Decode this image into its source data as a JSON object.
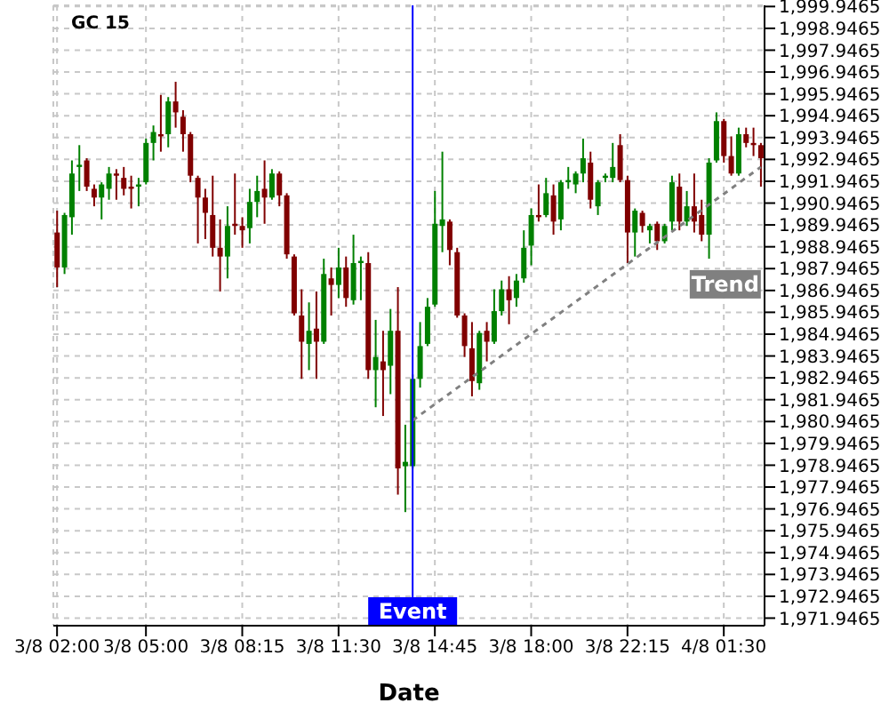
{
  "chart_data": {
    "type": "candlestick",
    "title": "GC 15",
    "xlabel": "Date",
    "categories": [
      "3/8 02:00",
      null,
      null,
      null,
      null,
      null,
      null,
      null,
      null,
      null,
      null,
      null,
      "3/8 05:00",
      null,
      null,
      null,
      null,
      null,
      null,
      null,
      null,
      null,
      null,
      null,
      null,
      "3/8 08:15",
      null,
      null,
      null,
      null,
      null,
      null,
      null,
      null,
      null,
      null,
      null,
      null,
      "3/8 11:30",
      null,
      null,
      null,
      null,
      null,
      null,
      null,
      null,
      null,
      null,
      null,
      null,
      "3/8 14:45",
      null,
      null,
      null,
      null,
      null,
      null,
      null,
      null,
      null,
      null,
      null,
      null,
      "3/8 18:00",
      null,
      null,
      null,
      null,
      null,
      null,
      null,
      null,
      null,
      null,
      null,
      null,
      "3/8 22:15",
      null,
      null,
      null,
      null,
      null,
      null,
      null,
      null,
      null,
      null,
      null,
      null,
      "4/8 01:30",
      null,
      null,
      null,
      null,
      null
    ],
    "ohlc": [
      [
        1989.6,
        1990.6,
        1987.1,
        1988.0
      ],
      [
        1988.0,
        1990.5,
        1987.7,
        1990.4
      ],
      [
        1990.3,
        1992.9,
        1989.5,
        1992.3
      ],
      [
        1992.6,
        1993.6,
        1991.5,
        1992.7
      ],
      [
        1992.9,
        1993.0,
        1991.5,
        1991.7
      ],
      [
        1991.6,
        1991.8,
        1990.8,
        1991.2
      ],
      [
        1991.2,
        1991.9,
        1990.2,
        1991.8
      ],
      [
        1991.6,
        1992.6,
        1991.1,
        1992.3
      ],
      [
        1992.3,
        1992.5,
        1991.1,
        1992.2
      ],
      [
        1992.1,
        1992.6,
        1991.3,
        1991.6
      ],
      [
        1991.7,
        1992.2,
        1990.7,
        1991.6
      ],
      [
        1991.7,
        1992.1,
        1990.8,
        1991.8
      ],
      [
        1991.9,
        1993.9,
        1991.8,
        1993.7
      ],
      [
        1993.7,
        1994.5,
        1992.9,
        1994.2
      ],
      [
        1994.1,
        1995.9,
        1993.3,
        1994.0
      ],
      [
        1994.1,
        1995.8,
        1993.5,
        1995.6
      ],
      [
        1995.6,
        1996.5,
        1994.4,
        1995.1
      ],
      [
        1994.9,
        1995.2,
        1993.3,
        1994.1
      ],
      [
        1994.1,
        1994.2,
        1991.9,
        1992.2
      ],
      [
        1992.1,
        1992.2,
        1989.1,
        1991.2
      ],
      [
        1991.2,
        1991.6,
        1989.3,
        1990.5
      ],
      [
        1990.4,
        1992.2,
        1988.5,
        1988.9
      ],
      [
        1988.9,
        1990.2,
        1986.9,
        1988.5
      ],
      [
        1988.5,
        1990.8,
        1987.5,
        1989.9
      ],
      [
        1990.0,
        1992.3,
        1989.5,
        1989.9
      ],
      [
        1989.9,
        1990.3,
        1988.9,
        1989.7
      ],
      [
        1989.8,
        1991.6,
        1989.1,
        1991.0
      ],
      [
        1991.0,
        1992.2,
        1990.3,
        1991.5
      ],
      [
        1991.6,
        1992.9,
        1990.0,
        1991.2
      ],
      [
        1991.2,
        1992.5,
        1991.1,
        1992.3
      ],
      [
        1992.3,
        1992.4,
        1990.8,
        1991.3
      ],
      [
        1991.3,
        1991.4,
        1988.4,
        1988.6
      ],
      [
        1988.5,
        1988.6,
        1985.8,
        1985.9
      ],
      [
        1985.8,
        1987.0,
        1982.9,
        1984.6
      ],
      [
        1984.5,
        1986.4,
        1983.3,
        1985.1
      ],
      [
        1985.2,
        1986.9,
        1982.9,
        1984.6
      ],
      [
        1984.6,
        1988.4,
        1984.5,
        1987.7
      ],
      [
        1987.5,
        1988.0,
        1985.8,
        1987.2
      ],
      [
        1987.2,
        1988.9,
        1986.6,
        1988.0
      ],
      [
        1988.0,
        1988.5,
        1986.2,
        1986.6
      ],
      [
        1986.5,
        1989.5,
        1986.3,
        1988.2
      ],
      [
        1988.2,
        1988.5,
        1986.5,
        1988.3
      ],
      [
        1988.2,
        1988.7,
        1982.9,
        1983.3
      ],
      [
        1983.3,
        1985.6,
        1981.6,
        1983.9
      ],
      [
        1983.7,
        1985.1,
        1981.2,
        1983.3
      ],
      [
        1983.5,
        1986.1,
        1982.2,
        1985.1
      ],
      [
        1985.1,
        1987.1,
        1977.6,
        1978.8
      ],
      [
        1978.9,
        1980.8,
        1976.8,
        1979.1
      ],
      [
        1978.9,
        1983.1,
        1978.8,
        1982.9
      ],
      [
        1982.9,
        1985.5,
        1982.5,
        1984.4
      ],
      [
        1984.5,
        1986.6,
        1984.4,
        1986.2
      ],
      [
        1986.3,
        1991.5,
        1986.2,
        1990.0
      ],
      [
        1989.9,
        1993.3,
        1988.7,
        1990.2
      ],
      [
        1990.1,
        1990.2,
        1988.1,
        1988.8
      ],
      [
        1988.7,
        1988.9,
        1985.7,
        1985.8
      ],
      [
        1985.8,
        1985.9,
        1983.9,
        1984.4
      ],
      [
        1984.3,
        1985.5,
        1982.1,
        1982.8
      ],
      [
        1982.7,
        1985.1,
        1982.4,
        1985.0
      ],
      [
        1985.1,
        1985.5,
        1983.7,
        1984.6
      ],
      [
        1984.6,
        1987.0,
        1984.5,
        1986.0
      ],
      [
        1986.0,
        1987.4,
        1985.8,
        1987.0
      ],
      [
        1987.0,
        1987.6,
        1985.4,
        1986.5
      ],
      [
        1986.6,
        1987.7,
        1986.2,
        1987.4
      ],
      [
        1987.5,
        1989.7,
        1987.3,
        1988.9
      ],
      [
        1989.0,
        1990.7,
        1988.1,
        1990.4
      ],
      [
        1990.4,
        1991.8,
        1990.1,
        1990.3
      ],
      [
        1990.4,
        1992.1,
        1990.3,
        1991.4
      ],
      [
        1991.3,
        1991.8,
        1989.5,
        1990.1
      ],
      [
        1990.2,
        1992.0,
        1989.7,
        1991.9
      ],
      [
        1991.9,
        1992.6,
        1991.6,
        1992.0
      ],
      [
        1991.8,
        1992.4,
        1991.4,
        1992.3
      ],
      [
        1992.3,
        1993.9,
        1991.9,
        1993.0
      ],
      [
        1992.8,
        1993.3,
        1990.7,
        1991.1
      ],
      [
        1990.8,
        1992.0,
        1990.4,
        1991.9
      ],
      [
        1992.1,
        1992.3,
        1991.9,
        1992.2
      ],
      [
        1992.1,
        1993.7,
        1991.9,
        1992.6
      ],
      [
        1993.6,
        1994.1,
        1991.9,
        1992.0
      ],
      [
        1992.0,
        1992.2,
        1988.2,
        1989.6
      ],
      [
        1989.6,
        1990.7,
        1988.5,
        1990.6
      ],
      [
        1990.5,
        1990.6,
        1989.6,
        1989.9
      ],
      [
        1989.7,
        1990.0,
        1989.1,
        1989.9
      ],
      [
        1990.0,
        1990.1,
        1988.8,
        1989.2
      ],
      [
        1989.2,
        1990.0,
        1989.1,
        1989.9
      ],
      [
        1990.1,
        1992.2,
        1989.7,
        1991.9
      ],
      [
        1991.7,
        1992.3,
        1989.7,
        1990.1
      ],
      [
        1990.1,
        1991.5,
        1989.9,
        1990.8
      ],
      [
        1990.8,
        1992.3,
        1989.6,
        1990.1
      ],
      [
        1990.4,
        1991.1,
        1989.2,
        1989.5
      ],
      [
        1989.5,
        1993.0,
        1988.4,
        1992.8
      ],
      [
        1992.9,
        1995.1,
        1992.8,
        1994.7
      ],
      [
        1994.7,
        1994.8,
        1992.8,
        1993.1
      ],
      [
        1993.1,
        1994.0,
        1992.2,
        1992.3
      ],
      [
        1992.3,
        1994.4,
        1992.2,
        1994.1
      ],
      [
        1994.1,
        1994.4,
        1993.5,
        1993.7
      ],
      [
        1993.7,
        1994.4,
        1993.1,
        1993.6
      ],
      [
        1993.6,
        1993.7,
        1991.7,
        1993.0
      ]
    ],
    "colors": [
      "#800000",
      "#008000",
      "#008000",
      "#008000",
      "#800000",
      "#800000",
      "#008000",
      "#008000",
      "#800000",
      "#800000",
      "#800000",
      "#008000",
      "#008000",
      "#008000",
      "#800000",
      "#008000",
      "#800000",
      "#800000",
      "#800000",
      "#800000",
      "#800000",
      "#800000",
      "#800000",
      "#008000",
      "#800000",
      "#800000",
      "#008000",
      "#008000",
      "#800000",
      "#008000",
      "#800000",
      "#800000",
      "#800000",
      "#800000",
      "#008000",
      "#800000",
      "#008000",
      "#800000",
      "#008000",
      "#800000",
      "#008000",
      "#008000",
      "#800000",
      "#008000",
      "#800000",
      "#008000",
      "#800000",
      "#008000",
      "#008000",
      "#008000",
      "#008000",
      "#008000",
      "#008000",
      "#800000",
      "#800000",
      "#800000",
      "#800000",
      "#008000",
      "#800000",
      "#008000",
      "#008000",
      "#800000",
      "#008000",
      "#008000",
      "#008000",
      "#800000",
      "#008000",
      "#800000",
      "#008000",
      "#008000",
      "#008000",
      "#008000",
      "#800000",
      "#008000",
      "#008000",
      "#008000",
      "#800000",
      "#800000",
      "#008000",
      "#800000",
      "#008000",
      "#800000",
      "#008000",
      "#008000",
      "#800000",
      "#008000",
      "#800000",
      "#800000",
      "#008000",
      "#008000",
      "#800000",
      "#800000",
      "#008000",
      "#800000",
      "#800000",
      "#800000"
    ],
    "series": [
      {
        "type": "line",
        "name": "Trend",
        "color": "#808080",
        "line_style": "dotted",
        "values": [
          null,
          null,
          null,
          null,
          null,
          null,
          null,
          null,
          null,
          null,
          null,
          null,
          null,
          null,
          null,
          null,
          null,
          null,
          null,
          null,
          null,
          null,
          null,
          null,
          null,
          null,
          null,
          null,
          null,
          null,
          null,
          null,
          null,
          null,
          null,
          null,
          null,
          null,
          null,
          null,
          null,
          null,
          null,
          null,
          null,
          null,
          null,
          null,
          1981.0,
          null,
          null,
          null,
          null,
          null,
          null,
          null,
          null,
          null,
          null,
          null,
          null,
          null,
          null,
          null,
          null,
          null,
          null,
          null,
          null,
          null,
          null,
          null,
          null,
          null,
          null,
          null,
          null,
          null,
          null,
          null,
          null,
          null,
          null,
          null,
          null,
          null,
          null,
          null,
          null,
          null,
          null,
          null,
          null,
          null,
          null,
          1992.6
        ]
      }
    ],
    "annotations": [
      "Event"
    ],
    "ylim": [
      1971.6,
      2000.0
    ],
    "yticks": [
      {
        "value": 1971.9465,
        "label": "1,971.9465"
      },
      {
        "value": 1972.9465,
        "label": "1,972.9465"
      },
      {
        "value": 1973.9465,
        "label": "1,973.9465"
      },
      {
        "value": 1974.9465,
        "label": "1,974.9465"
      },
      {
        "value": 1975.9465,
        "label": "1,975.9465"
      },
      {
        "value": 1976.9465,
        "label": "1,976.9465"
      },
      {
        "value": 1977.9465,
        "label": "1,977.9465"
      },
      {
        "value": 1978.9465,
        "label": "1,978.9465"
      },
      {
        "value": 1979.9465,
        "label": "1,979.9465"
      },
      {
        "value": 1980.9465,
        "label": "1,980.9465"
      },
      {
        "value": 1981.9465,
        "label": "1,981.9465"
      },
      {
        "value": 1982.9465,
        "label": "1,982.9465"
      },
      {
        "value": 1983.9465,
        "label": "1,983.9465"
      },
      {
        "value": 1984.9465,
        "label": "1,984.9465"
      },
      {
        "value": 1985.9465,
        "label": "1,985.9465"
      },
      {
        "value": 1986.9465,
        "label": "1,986.9465"
      },
      {
        "value": 1987.9465,
        "label": "1,987.9465"
      },
      {
        "value": 1988.9465,
        "label": "1,988.9465"
      },
      {
        "value": 1989.9465,
        "label": "1,989.9465"
      },
      {
        "value": 1990.9465,
        "label": "1,990.9465"
      },
      {
        "value": 1991.9465,
        "label": "1,991.9465"
      },
      {
        "value": 1992.9465,
        "label": "1,992.9465"
      },
      {
        "value": 1993.9465,
        "label": "1,993.9465"
      },
      {
        "value": 1994.9465,
        "label": "1,994.9465"
      },
      {
        "value": 1995.9465,
        "label": "1,995.9465"
      },
      {
        "value": 1996.9465,
        "label": "1,996.9465"
      },
      {
        "value": 1997.9465,
        "label": "1,997.9465"
      },
      {
        "value": 1998.9465,
        "label": "1,998.9465"
      },
      {
        "value": 1999.9465,
        "label": "1,999.9465"
      }
    ],
    "grid": true
  }
}
